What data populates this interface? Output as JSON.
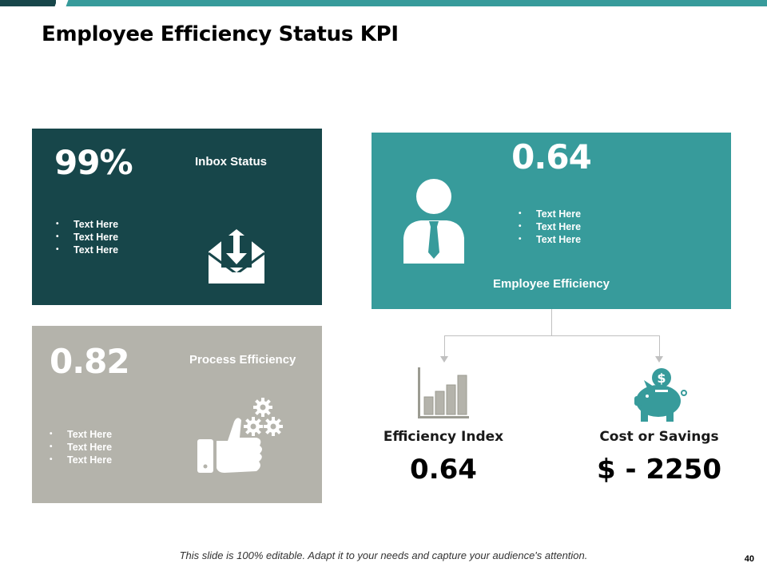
{
  "title": "Employee Efficiency Status KPI",
  "colors": {
    "dark_teal": "#17464a",
    "teal": "#379b9b",
    "gray": "#b4b3ab",
    "connector": "#c0c0c0"
  },
  "inbox": {
    "value": "99%",
    "label": "Inbox Status",
    "bullets": [
      "Text Here",
      "Text Here",
      "Text Here"
    ],
    "icon": "envelope-download-icon"
  },
  "process": {
    "value": "0.82",
    "label": "Process Efficiency",
    "bullets": [
      "Text Here",
      "Text Here",
      "Text Here"
    ],
    "icon": "thumbs-up-gears-icon"
  },
  "employee": {
    "value": "0.64",
    "label": "Employee Efficiency",
    "bullets": [
      "Text Here",
      "Text Here",
      "Text Here"
    ],
    "icon": "businessman-icon"
  },
  "efficiency_index": {
    "label": "Efficiency Index",
    "value": "0.64",
    "icon": "bar-chart-icon"
  },
  "cost_savings": {
    "label": "Cost or Savings",
    "value": "$ - 2250",
    "icon": "piggy-bank-icon"
  },
  "footer": {
    "note": "This slide is 100% editable. Adapt it to your needs and capture your audience's attention.",
    "page_number": "40"
  }
}
